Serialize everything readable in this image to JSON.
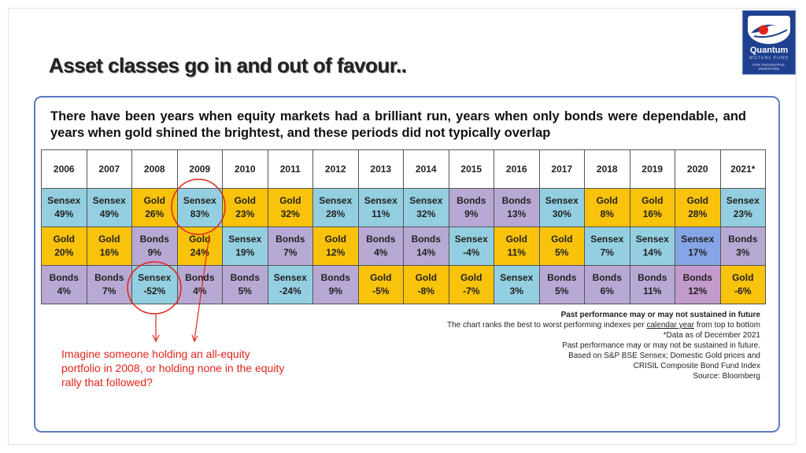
{
  "title": "Asset classes go in and out of favour..",
  "intro": "There have been years when equity markets had a brilliant run, years when only bonds were dependable, and years when gold shined the brightest, and these periods did not typically overlap",
  "logo": {
    "brand": "Quantum",
    "line1": "MUTUAL FUND",
    "line2": "FOR THOUGHTFUL INVESTORS"
  },
  "years": [
    "2006",
    "2007",
    "2008",
    "2009",
    "2010",
    "2011",
    "2012",
    "2013",
    "2014",
    "2015",
    "2016",
    "2017",
    "2018",
    "2019",
    "2020",
    "2021*"
  ],
  "rows": [
    [
      {
        "asset": "Sensex",
        "value": "49%"
      },
      {
        "asset": "Sensex",
        "value": "49%"
      },
      {
        "asset": "Gold",
        "value": "26%"
      },
      {
        "asset": "Sensex",
        "value": "83%"
      },
      {
        "asset": "Gold",
        "value": "23%"
      },
      {
        "asset": "Gold",
        "value": "32%"
      },
      {
        "asset": "Sensex",
        "value": "28%"
      },
      {
        "asset": "Sensex",
        "value": "11%"
      },
      {
        "asset": "Sensex",
        "value": "32%"
      },
      {
        "asset": "Bonds",
        "value": "9%"
      },
      {
        "asset": "Bonds",
        "value": "13%"
      },
      {
        "asset": "Sensex",
        "value": "30%"
      },
      {
        "asset": "Gold",
        "value": "8%"
      },
      {
        "asset": "Gold",
        "value": "16%"
      },
      {
        "asset": "Gold",
        "value": "28%"
      },
      {
        "asset": "Sensex",
        "value": "23%"
      }
    ],
    [
      {
        "asset": "Gold",
        "value": "20%"
      },
      {
        "asset": "Gold",
        "value": "16%"
      },
      {
        "asset": "Bonds",
        "value": "9%"
      },
      {
        "asset": "Gold",
        "value": "24%"
      },
      {
        "asset": "Sensex",
        "value": "19%"
      },
      {
        "asset": "Bonds",
        "value": "7%"
      },
      {
        "asset": "Gold",
        "value": "12%"
      },
      {
        "asset": "Bonds",
        "value": "4%"
      },
      {
        "asset": "Bonds",
        "value": "14%"
      },
      {
        "asset": "Sensex",
        "value": "-4%"
      },
      {
        "asset": "Gold",
        "value": "11%"
      },
      {
        "asset": "Gold",
        "value": "5%"
      },
      {
        "asset": "Sensex",
        "value": "7%"
      },
      {
        "asset": "Sensex",
        "value": "14%"
      },
      {
        "asset": "Sensex",
        "value": "17%",
        "alt": true
      },
      {
        "asset": "Bonds",
        "value": "3%"
      }
    ],
    [
      {
        "asset": "Bonds",
        "value": "4%"
      },
      {
        "asset": "Bonds",
        "value": "7%"
      },
      {
        "asset": "Sensex",
        "value": "-52%"
      },
      {
        "asset": "Bonds",
        "value": "4%"
      },
      {
        "asset": "Bonds",
        "value": "5%"
      },
      {
        "asset": "Sensex",
        "value": "-24%"
      },
      {
        "asset": "Bonds",
        "value": "9%"
      },
      {
        "asset": "Gold",
        "value": "-5%"
      },
      {
        "asset": "Gold",
        "value": "-8%"
      },
      {
        "asset": "Gold",
        "value": "-7%"
      },
      {
        "asset": "Sensex",
        "value": "3%"
      },
      {
        "asset": "Bonds",
        "value": "5%"
      },
      {
        "asset": "Bonds",
        "value": "6%"
      },
      {
        "asset": "Bonds",
        "value": "11%"
      },
      {
        "asset": "Bonds",
        "value": "12%",
        "alt": true
      },
      {
        "asset": "Gold",
        "value": "-6%"
      }
    ]
  ],
  "colors": {
    "Sensex": "#93cfe0",
    "Gold": "#f9c20b",
    "Bonds": "#b7a9d3",
    "accent": "#e1251b",
    "panel_border": "#5b79c4"
  },
  "notes": {
    "line1": "Past performance may or may not sustained in future",
    "line2_pre": "The chart ranks the best to worst performing indexes per ",
    "line2_link": "calendar year",
    "line2_post": " from top to bottom",
    "line3": "*Data as of December 2021",
    "line4": "Past performance may or may not be sustained in future.",
    "line5": "Based on S&P BSE Sensex; Domestic Gold prices and",
    "line6": "CRISIL Composite Bond Fund Index",
    "line7": "Source: Bloomberg"
  },
  "callout": "Imagine someone holding an all-equity portfolio in 2008, or holding none in the equity rally that followed?"
}
